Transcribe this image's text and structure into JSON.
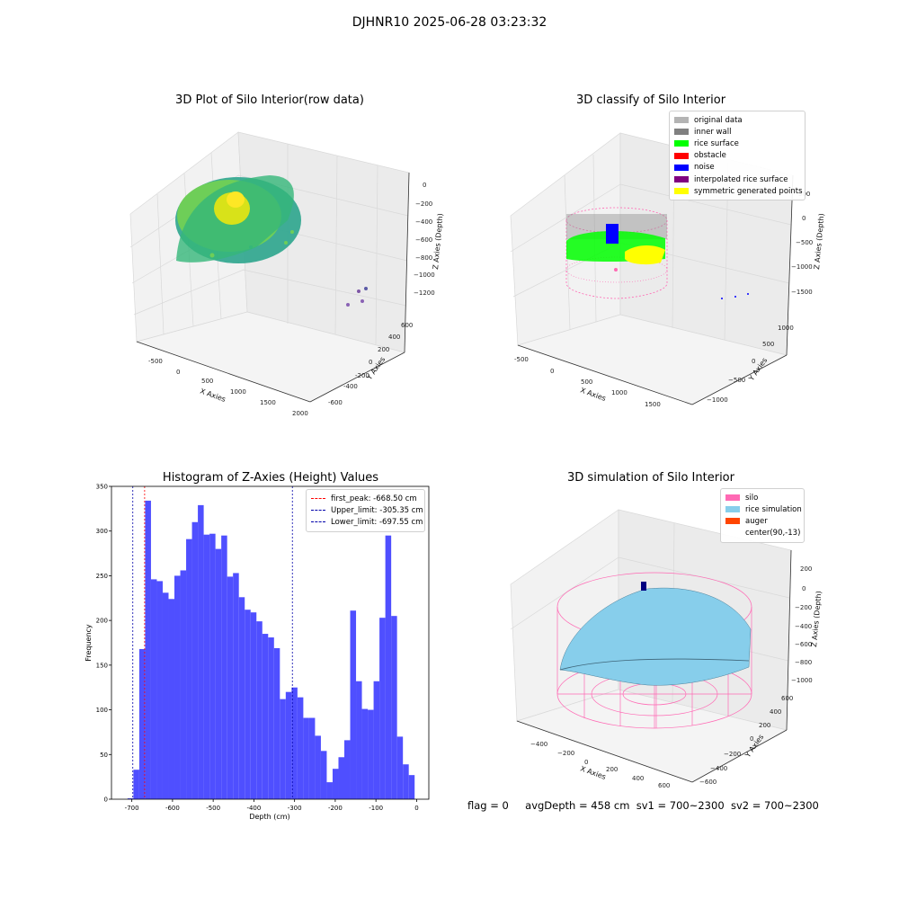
{
  "suptitle": "DJHNR10 2025-06-28 03:23:32",
  "footer": {
    "flag": "flag = 0",
    "avg_depth": "avgDepth = 458 cm",
    "sv1": "sv1 = 700~2300",
    "sv2": "sv2 = 700~2300"
  },
  "panels": {
    "raw": {
      "title": "3D Plot of Silo Interior(row data)",
      "xlabel": "X Axies",
      "ylabel": "Y Axies",
      "zlabel": "Z Axies (Depth)",
      "xticks": [
        "-500",
        "0",
        "500",
        "1000",
        "1500",
        "2000"
      ],
      "yticks": [
        "-600",
        "-400",
        "-200",
        "0",
        "200",
        "400",
        "600"
      ],
      "zticks": [
        "0",
        "−200",
        "−400",
        "−600",
        "−800",
        "−1000",
        "−1200"
      ]
    },
    "classify": {
      "title": "3D classify of Silo Interior",
      "xlabel": "X Axies",
      "ylabel": "Y Axies",
      "zlabel": "Z Axies (Depth)",
      "xticks": [
        "-500",
        "0",
        "500",
        "1000",
        "1500"
      ],
      "yticks": [
        "−1000",
        "−500",
        "0",
        "500",
        "1000"
      ],
      "zticks": [
        "500",
        "0",
        "−500",
        "−1000",
        "−1500"
      ],
      "legend": [
        {
          "label": "original data",
          "color": "#b4b4b4"
        },
        {
          "label": "inner wall",
          "color": "#808080"
        },
        {
          "label": "rice surface",
          "color": "#00ff00"
        },
        {
          "label": "obstacle",
          "color": "#ff0000"
        },
        {
          "label": "noise",
          "color": "#0000ff"
        },
        {
          "label": "interpolated rice surface",
          "color": "#800080"
        },
        {
          "label": "symmetric generated points",
          "color": "#ffff00"
        }
      ]
    },
    "simulation": {
      "title": "3D simulation of Silo Interior",
      "xlabel": "X Axies",
      "ylabel": "Y Axies",
      "zlabel": "Z Axies (Depth)",
      "xticks": [
        "−400",
        "−200",
        "0",
        "200",
        "400",
        "600"
      ],
      "yticks": [
        "−600",
        "−400",
        "−200",
        "0",
        "200",
        "400",
        "600"
      ],
      "zticks": [
        "200",
        "0",
        "−200",
        "−400",
        "−600",
        "−800",
        "−1000"
      ],
      "legend": [
        {
          "label": "silo",
          "color": "#ff69b4"
        },
        {
          "label": "rice simulation",
          "color": "#87ceeb"
        },
        {
          "label": "auger",
          "color": "#ff4500"
        },
        {
          "label": "center(90,-13)",
          "color": ""
        }
      ]
    }
  },
  "chart_data": {
    "type": "bar",
    "title": "Histogram of Z-Axies (Height) Values",
    "xlabel": "Depth (cm)",
    "ylabel": "Frequency",
    "xlim": [
      -750,
      30
    ],
    "ylim": [
      0,
      350
    ],
    "xticks": [
      -700,
      -600,
      -500,
      -400,
      -300,
      -200,
      -100,
      0
    ],
    "yticks": [
      0,
      50,
      100,
      150,
      200,
      250,
      300,
      350
    ],
    "bar_color": "#4b4bff",
    "bin_width": 14.4,
    "bins_left": [
      -710.5,
      -696.1,
      -681.7,
      -667.3,
      -652.9,
      -638.5,
      -624.1,
      -609.7,
      -595.3,
      -580.9,
      -566.5,
      -552.1,
      -537.7,
      -523.3,
      -508.9,
      -494.5,
      -480.1,
      -465.7,
      -451.3,
      -436.9,
      -422.5,
      -408.1,
      -393.7,
      -379.3,
      -364.9,
      -350.5,
      -336.1,
      -321.7,
      -307.3,
      -292.9,
      -278.5,
      -264.1,
      -249.7,
      -235.3,
      -220.9,
      -206.5,
      -192.1,
      -177.7,
      -163.3,
      -148.9,
      -134.5,
      -120.1,
      -105.7,
      -91.3,
      -76.9,
      -62.5,
      -48.1,
      -33.7,
      -19.3
    ],
    "values": [
      1,
      33,
      168,
      334,
      246,
      244,
      231,
      224,
      250,
      256,
      291,
      310,
      329,
      296,
      297,
      280,
      295,
      249,
      253,
      226,
      212,
      209,
      199,
      185,
      181,
      169,
      112,
      120,
      125,
      114,
      91,
      91,
      71,
      54,
      19,
      34,
      47,
      66,
      211,
      132,
      101,
      100,
      132,
      203,
      295,
      205,
      70,
      39,
      27
    ],
    "vlines": [
      {
        "label": "first_peak: -668.50 cm",
        "x": -668.5,
        "color": "#ff0000"
      },
      {
        "label": "Upper_limit: -305.35 cm",
        "x": -305.35,
        "color": "#0000aa"
      },
      {
        "label": "Lower_limit: -697.55 cm",
        "x": -697.55,
        "color": "#0000aa"
      }
    ],
    "legend_position": "upper right"
  }
}
